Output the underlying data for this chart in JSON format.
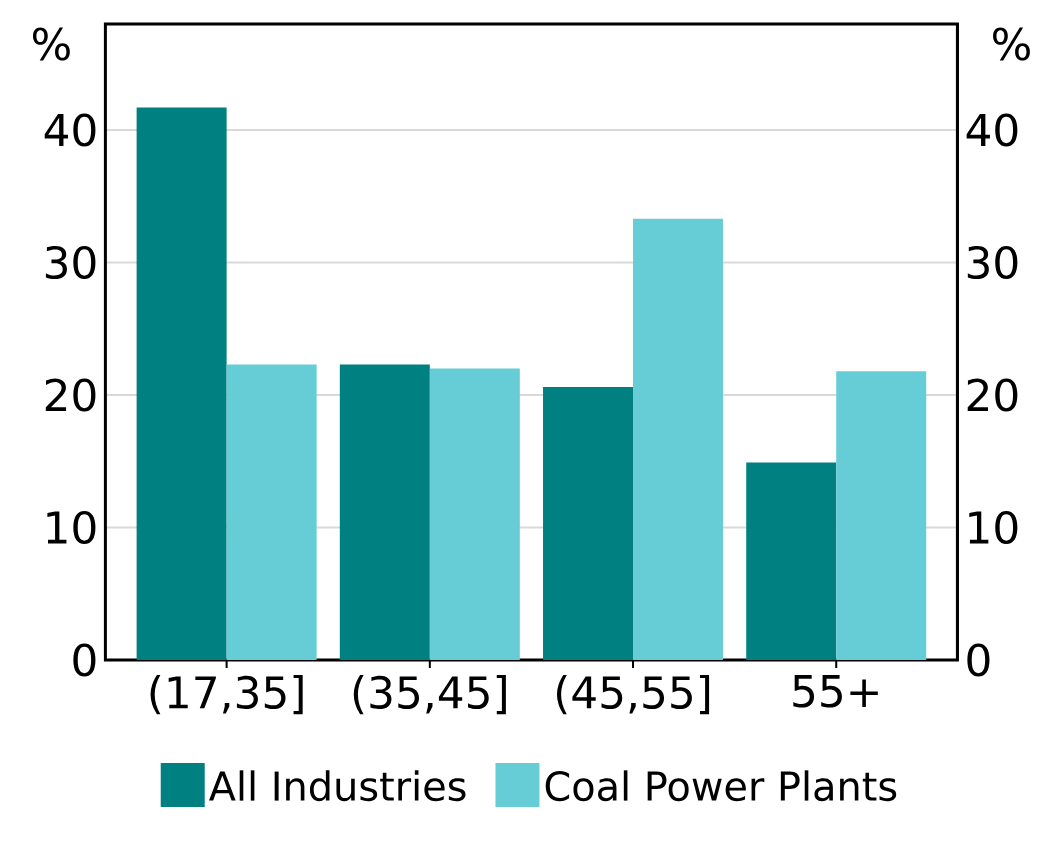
{
  "chart_data": {
    "type": "bar",
    "ylabel": "%",
    "y2label": "%",
    "categories": [
      "(17,35]",
      "(35,45]",
      "(45,55]",
      "55+"
    ],
    "series": [
      {
        "name": "All Industries",
        "color": "#008080",
        "values": [
          41.7,
          22.3,
          20.6,
          14.9
        ]
      },
      {
        "name": "Coal Power Plants",
        "color": "#66cdd6",
        "values": [
          22.3,
          22.0,
          33.3,
          21.8
        ]
      }
    ],
    "ylim": [
      0,
      48
    ],
    "yticks": [
      0,
      10,
      20,
      30,
      40
    ],
    "y2lim": [
      0,
      48
    ],
    "y2ticks": [
      0,
      10,
      20,
      30,
      40
    ],
    "grid": "y",
    "legend": "bottom"
  }
}
